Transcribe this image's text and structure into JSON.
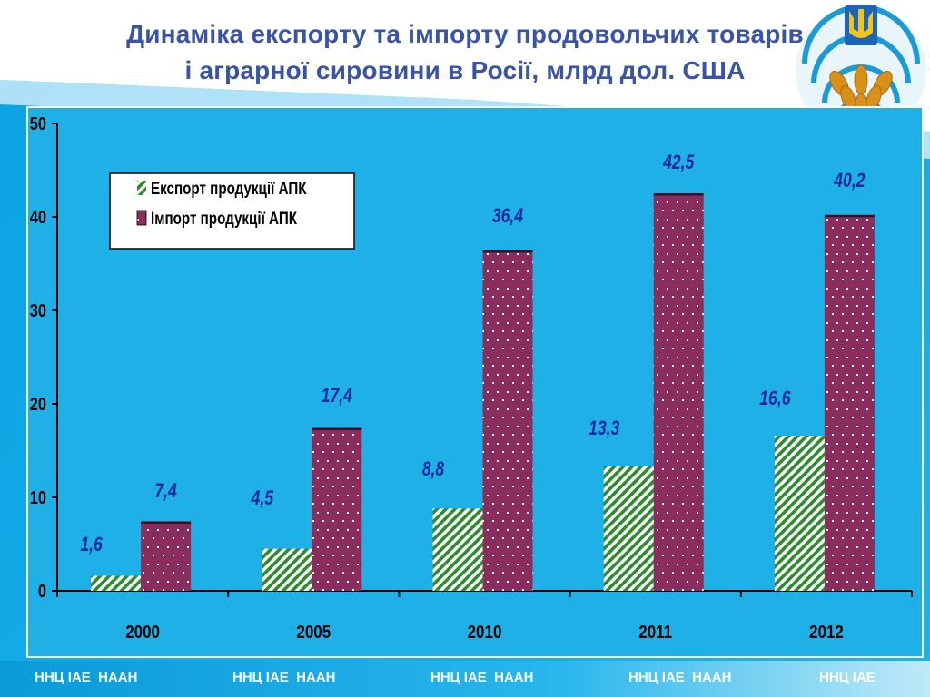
{
  "title": {
    "line1": "Динаміка експорту та імпорту продовольчих товарів",
    "line2": "і аграрної сировини в Росії, млрд дол. США"
  },
  "chart_data": {
    "type": "bar",
    "categories": [
      "2000",
      "2005",
      "2010",
      "2011",
      "2012"
    ],
    "series": [
      {
        "name": "Експорт продукції АПК",
        "values": [
          1.6,
          4.5,
          8.8,
          13.3,
          16.6
        ],
        "labels": [
          "1,6",
          "4,5",
          "8,8",
          "13,3",
          "16,6"
        ],
        "color": "#2e8b2e"
      },
      {
        "name": "Імпорт продукції АПК",
        "values": [
          7.4,
          17.4,
          36.4,
          42.5,
          40.2
        ],
        "labels": [
          "7,4",
          "17,4",
          "36,4",
          "42,5",
          "40,2"
        ],
        "color": "#8b2d5c"
      }
    ],
    "ylim": [
      0,
      50
    ],
    "yticks": [
      0,
      10,
      20,
      30,
      40,
      50
    ],
    "ytick_labels": [
      "0",
      "10",
      "20",
      "30",
      "40",
      "50"
    ],
    "grid": false,
    "legend_position": "top-left"
  },
  "footer": {
    "items": [
      "ННЦ ІАЕ  НААН",
      "ННЦ ІАЕ  НААН",
      "ННЦ ІАЕ  НААН",
      "ННЦ ІАЕ  НААН",
      "ННЦ ІАЕ"
    ]
  },
  "colors": {
    "title": "#3a54a5",
    "plot_background": "#1fb0e8",
    "slide_background": "#15a9e6",
    "data_label": "#1a2ba0"
  },
  "icons": {
    "emblem": "trident-wheat-emblem-icon"
  }
}
